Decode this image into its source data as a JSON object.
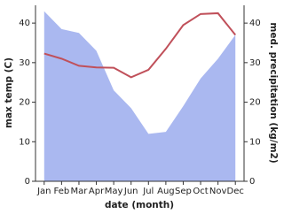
{
  "chart_data": {
    "type": "line",
    "xlabel": "date (month)",
    "ylabel": "max temp (C)",
    "y2label": "med. precipitation (kg/m2)",
    "categories": [
      "Jan",
      "Feb",
      "Mar",
      "Apr",
      "May",
      "Jun",
      "Jul",
      "Aug",
      "Sep",
      "Oct",
      "Nov",
      "Dec"
    ],
    "ylim": [
      0,
      44.5
    ],
    "yticks": [
      0,
      10,
      20,
      30,
      40
    ],
    "y2lim": [
      0,
      44.5
    ],
    "y2ticks": [
      0,
      10,
      20,
      30,
      40
    ],
    "series": [
      {
        "name": "med. precipitation",
        "type": "area",
        "axis": "y2",
        "color": "#aab8f0",
        "values": [
          43,
          38.5,
          37.5,
          33,
          23,
          18.5,
          12,
          12.5,
          19,
          26,
          31,
          37
        ]
      },
      {
        "name": "max temp",
        "type": "line",
        "color": "#c0505a",
        "values": [
          32.3,
          31,
          29.2,
          28.8,
          28.7,
          26.3,
          28.2,
          33.5,
          39.5,
          42.3,
          42.5,
          37
        ]
      }
    ]
  }
}
